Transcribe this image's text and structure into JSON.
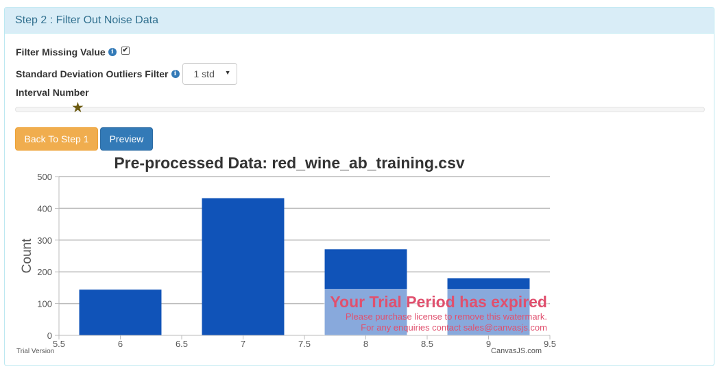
{
  "panel": {
    "title": "Step 2 : Filter Out Noise Data"
  },
  "filters": {
    "missing_label": "Filter Missing Value",
    "missing_checked": true,
    "outlier_label": "Standard Deviation Outliers Filter",
    "outlier_value": "1 std",
    "interval_label": "Interval Number",
    "interval_icon": "star-icon"
  },
  "buttons": {
    "back_label": "Back To Step 1",
    "preview_label": "Preview"
  },
  "colors": {
    "bar": "#1053b8",
    "heading_bg": "#d9edf7",
    "heading_text": "#31708f",
    "warning_btn": "#f0ad4e",
    "primary_btn": "#337ab7",
    "watermark": "#e0506e"
  },
  "chart_data": {
    "type": "bar",
    "title": "Pre-processed Data: red_wine_ab_training.csv",
    "xlabel": "",
    "ylabel": "Count",
    "x": [
      6,
      7,
      8,
      9
    ],
    "values": [
      144,
      432,
      271,
      180
    ],
    "xlim": [
      5.5,
      9.5
    ],
    "ylim": [
      0,
      500
    ],
    "xticks": [
      "5.5",
      "6",
      "6.5",
      "7",
      "7.5",
      "8",
      "8.5",
      "9",
      "9.5"
    ],
    "yticks": [
      "0",
      "100",
      "200",
      "300",
      "400",
      "500"
    ],
    "grid": true,
    "legend": "none"
  },
  "watermark": {
    "title": "Your Trial Period has expired",
    "line1": "Please purchase license to remove this watermark.",
    "line2": "For any enquiries contact sales@canvasjs.com",
    "trial": "Trial Version",
    "credit": "CanvasJS.com"
  }
}
